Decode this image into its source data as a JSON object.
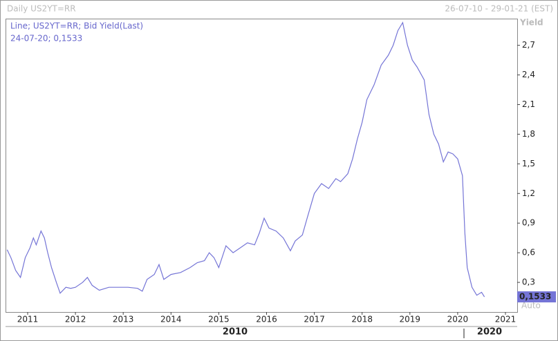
{
  "chart_data": {
    "type": "line",
    "title": "Daily US2YT=RR",
    "date_range": "26-07-10 - 29-01-21 (EST)",
    "y_label": "Yield",
    "legend_lines": [
      "Line; US2YT=RR; Bid Yield(Last)",
      "24-07-20; 0,1533"
    ],
    "scale_mode": "Auto",
    "last_value": {
      "value": 0.1533,
      "label": "0,1533"
    },
    "period_labels": [
      "2010",
      "2020"
    ],
    "x": [
      2010.57,
      2010.65,
      2010.75,
      2010.85,
      2010.95,
      2011.05,
      2011.12,
      2011.18,
      2011.28,
      2011.35,
      2011.42,
      2011.5,
      2011.6,
      2011.68,
      2011.8,
      2011.9,
      2012.0,
      2012.15,
      2012.25,
      2012.35,
      2012.5,
      2012.7,
      2012.9,
      2013.1,
      2013.3,
      2013.4,
      2013.5,
      2013.65,
      2013.75,
      2013.85,
      2014.0,
      2014.2,
      2014.4,
      2014.55,
      2014.7,
      2014.8,
      2014.9,
      2015.0,
      2015.15,
      2015.3,
      2015.45,
      2015.6,
      2015.75,
      2015.85,
      2015.95,
      2016.05,
      2016.2,
      2016.35,
      2016.5,
      2016.6,
      2016.75,
      2016.85,
      2017.0,
      2017.15,
      2017.3,
      2017.45,
      2017.55,
      2017.7,
      2017.8,
      2017.9,
      2018.0,
      2018.1,
      2018.25,
      2018.4,
      2018.55,
      2018.65,
      2018.75,
      2018.85,
      2018.95,
      2019.05,
      2019.15,
      2019.3,
      2019.4,
      2019.5,
      2019.6,
      2019.7,
      2019.8,
      2019.9,
      2020.0,
      2020.1,
      2020.15,
      2020.2,
      2020.3,
      2020.4,
      2020.5,
      2020.56
    ],
    "series": [
      {
        "name": "US2YT=RR",
        "color": "#7474d6",
        "values": [
          0.63,
          0.55,
          0.42,
          0.35,
          0.55,
          0.65,
          0.75,
          0.68,
          0.82,
          0.75,
          0.6,
          0.45,
          0.3,
          0.19,
          0.25,
          0.24,
          0.25,
          0.3,
          0.35,
          0.27,
          0.22,
          0.25,
          0.25,
          0.25,
          0.24,
          0.21,
          0.33,
          0.38,
          0.48,
          0.33,
          0.38,
          0.4,
          0.45,
          0.5,
          0.52,
          0.6,
          0.55,
          0.45,
          0.67,
          0.6,
          0.65,
          0.7,
          0.68,
          0.8,
          0.95,
          0.85,
          0.82,
          0.75,
          0.62,
          0.72,
          0.78,
          0.95,
          1.2,
          1.3,
          1.25,
          1.35,
          1.32,
          1.4,
          1.55,
          1.75,
          1.92,
          2.15,
          2.3,
          2.5,
          2.6,
          2.7,
          2.85,
          2.93,
          2.7,
          2.55,
          2.48,
          2.35,
          2.0,
          1.8,
          1.7,
          1.52,
          1.62,
          1.6,
          1.55,
          1.38,
          0.8,
          0.45,
          0.25,
          0.17,
          0.2,
          0.1533
        ]
      }
    ],
    "xlim": [
      2010.537,
      2021.246
    ],
    "xticks": [
      2011,
      2012,
      2013,
      2014,
      2015,
      2016,
      2017,
      2018,
      2019,
      2020,
      2021
    ],
    "ylim": [
      0,
      2.97
    ],
    "yticks": [
      {
        "value": 0.3,
        "label": "0,3"
      },
      {
        "value": 0.6,
        "label": "0,6"
      },
      {
        "value": 0.9,
        "label": "0,9"
      },
      {
        "value": 1.2,
        "label": "1,2"
      },
      {
        "value": 1.5,
        "label": "1,5"
      },
      {
        "value": 1.8,
        "label": "1,8"
      },
      {
        "value": 2.1,
        "label": "2,1"
      },
      {
        "value": 2.4,
        "label": "2,4"
      },
      {
        "value": 2.7,
        "label": "2,7"
      }
    ],
    "grid": false
  }
}
